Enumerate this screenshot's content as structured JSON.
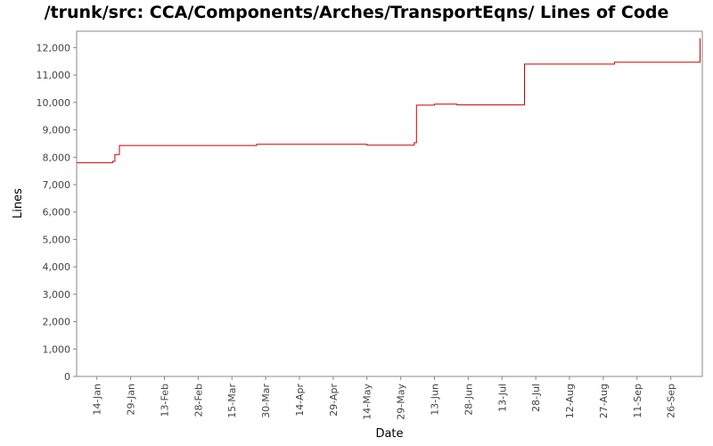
{
  "chart_data": {
    "type": "line",
    "title": "/trunk/src: CCA/Components/Arches/TransportEqns/ Lines of Code",
    "xlabel": "Date",
    "ylabel": "Lines",
    "ylim": [
      0,
      12600
    ],
    "xlim": [
      "2009-01-05",
      "2009-10-10"
    ],
    "yticks": [
      0,
      1000,
      2000,
      3000,
      4000,
      5000,
      6000,
      7000,
      8000,
      9000,
      10000,
      11000,
      12000
    ],
    "ytick_labels": [
      "0",
      "1,000",
      "2,000",
      "3,000",
      "4,000",
      "5,000",
      "6,000",
      "7,000",
      "8,000",
      "9,000",
      "10,000",
      "11,000",
      "12,000"
    ],
    "xticks": [
      "2009-01-14",
      "2009-01-29",
      "2009-02-13",
      "2009-02-28",
      "2009-03-15",
      "2009-03-30",
      "2009-04-14",
      "2009-04-29",
      "2009-05-14",
      "2009-05-29",
      "2009-06-13",
      "2009-06-28",
      "2009-07-13",
      "2009-07-28",
      "2009-08-12",
      "2009-08-27",
      "2009-09-11",
      "2009-09-26"
    ],
    "xtick_labels": [
      "14-Jan",
      "29-Jan",
      "13-Feb",
      "28-Feb",
      "15-Mar",
      "30-Mar",
      "14-Apr",
      "29-Apr",
      "14-May",
      "29-May",
      "13-Jun",
      "28-Jun",
      "13-Jul",
      "28-Jul",
      "12-Aug",
      "27-Aug",
      "11-Sep",
      "26-Sep"
    ],
    "grid": false,
    "series": [
      {
        "color": "#cc0000",
        "step": true,
        "points": [
          [
            "2009-01-05",
            7800
          ],
          [
            "2009-01-21",
            7850
          ],
          [
            "2009-01-22",
            8100
          ],
          [
            "2009-01-24",
            8150
          ],
          [
            "2009-01-24",
            8430
          ],
          [
            "2009-03-26",
            8470
          ],
          [
            "2009-05-14",
            8440
          ],
          [
            "2009-06-04",
            8530
          ],
          [
            "2009-06-05",
            9900
          ],
          [
            "2009-06-13",
            9940
          ],
          [
            "2009-06-23",
            9910
          ],
          [
            "2009-07-23",
            11400
          ],
          [
            "2009-09-01",
            11470
          ],
          [
            "2009-10-09",
            12350
          ]
        ]
      }
    ]
  }
}
